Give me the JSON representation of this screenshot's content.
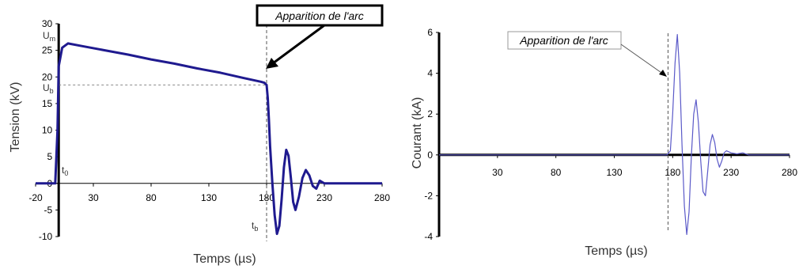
{
  "chart_data": [
    {
      "type": "line",
      "xlabel": "Temps (µs)",
      "ylabel": "Tension (kV)",
      "xlim": [
        -20,
        280
      ],
      "ylim": [
        -10,
        30
      ],
      "x_ticks": [
        -20,
        30,
        80,
        130,
        180,
        230,
        280
      ],
      "y_ticks": [
        30,
        25,
        20,
        15,
        10,
        5,
        0,
        -5,
        -10
      ],
      "grid": false,
      "color": "#1f1a8f",
      "x": [
        -20,
        -5,
        -3,
        -1,
        0,
        3,
        8,
        20,
        40,
        60,
        80,
        100,
        120,
        140,
        160,
        175,
        178,
        179,
        180,
        181,
        182,
        183,
        185,
        187,
        189,
        191,
        193,
        195,
        197,
        199,
        201,
        203,
        205,
        208,
        211,
        214,
        217,
        220,
        223,
        226,
        230,
        240,
        280
      ],
      "values": [
        0,
        0,
        0,
        10,
        22,
        25.5,
        26.3,
        25.8,
        25,
        24.2,
        23.3,
        22.5,
        21.6,
        20.8,
        19.8,
        19.1,
        18.9,
        18.7,
        18.5,
        16,
        12,
        7,
        0,
        -6,
        -9.5,
        -8,
        -3,
        3,
        6.3,
        5.2,
        1,
        -3.5,
        -5,
        -2.5,
        1,
        2.5,
        1.5,
        -0.5,
        -1,
        0.5,
        0,
        0,
        0
      ],
      "annotations": {
        "arc": "Apparition de l'arc",
        "um": "U",
        "um_sub": "m",
        "ub": "U",
        "ub_sub": "b",
        "t0": "t",
        "t0_sub": "0",
        "tb": "t",
        "tb_sub": "b"
      },
      "reference_lines": {
        "um": 26.3,
        "ub": 18.5,
        "t_arc": 180
      }
    },
    {
      "type": "line",
      "xlabel": "Temps (µs)",
      "ylabel": "Courant (kA)",
      "xlim": [
        -20,
        280
      ],
      "ylim": [
        -4,
        6
      ],
      "x_ticks": [
        30,
        80,
        130,
        180,
        230,
        280
      ],
      "y_ticks": [
        6,
        4,
        2,
        0,
        -2,
        -4
      ],
      "grid": false,
      "color": "#5a59c8",
      "x": [
        -20,
        175,
        178,
        180,
        182,
        184,
        186,
        188,
        190,
        192,
        194,
        196,
        198,
        200,
        202,
        204,
        206,
        208,
        210,
        212,
        214,
        216,
        218,
        220,
        222,
        224,
        226,
        230,
        235,
        240,
        245,
        280
      ],
      "values": [
        0,
        0,
        0.2,
        2,
        4.5,
        5.9,
        4,
        0.5,
        -2.5,
        -3.9,
        -2.8,
        0,
        2,
        2.7,
        1.6,
        -0.3,
        -1.8,
        -2,
        -0.8,
        0.5,
        1,
        0.6,
        -0.2,
        -0.6,
        -0.3,
        0.1,
        0.2,
        0.1,
        0.05,
        0.1,
        0,
        0
      ],
      "annotations": {
        "arc": "Apparition de l'arc"
      },
      "reference_lines": {
        "t_arc": 176
      }
    }
  ]
}
